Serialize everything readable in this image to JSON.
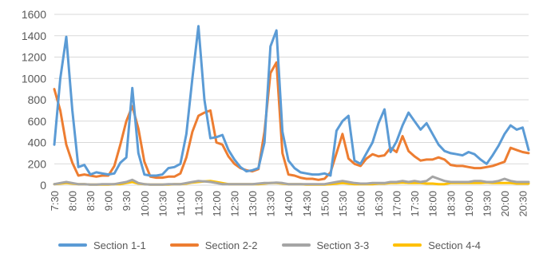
{
  "chart_data": {
    "type": "line",
    "title": "",
    "xlabel": "",
    "ylabel": "",
    "ylim": [
      0,
      1600
    ],
    "yticks": [
      0,
      200,
      400,
      600,
      800,
      1000,
      1200,
      1400,
      1600
    ],
    "grid": "horizontal",
    "legend_position": "bottom",
    "x": [
      "7:30",
      "7:40",
      "7:50",
      "8:00",
      "8:10",
      "8:20",
      "8:30",
      "8:40",
      "8:50",
      "9:00",
      "9:10",
      "9:20",
      "9:30",
      "9:40",
      "9:50",
      "10:00",
      "10:10",
      "10:20",
      "10:30",
      "10:40",
      "10:50",
      "11:00",
      "11:10",
      "11:20",
      "11:30",
      "11:40",
      "11:50",
      "12:00",
      "12:10",
      "12:20",
      "12:30",
      "12:40",
      "12:50",
      "13:00",
      "13:10",
      "13:20",
      "13:30",
      "13:40",
      "13:50",
      "14:00",
      "14:10",
      "14:20",
      "14:30",
      "14:40",
      "14:50",
      "15:00",
      "15:10",
      "15:20",
      "15:30",
      "15:40",
      "15:50",
      "16:00",
      "16:10",
      "16:20",
      "16:30",
      "16:40",
      "16:50",
      "17:00",
      "17:10",
      "17:20",
      "17:30",
      "17:40",
      "17:50",
      "18:00",
      "18:10",
      "18:20",
      "18:30",
      "18:40",
      "18:50",
      "19:00",
      "19:10",
      "19:20",
      "19:30",
      "19:40",
      "19:50",
      "20:00",
      "20:10",
      "20:20",
      "20:30",
      "20:40"
    ],
    "tick_labels": [
      "7:30",
      "8:00",
      "8:30",
      "9:00",
      "9:30",
      "10:00",
      "10:30",
      "11:00",
      "11:30",
      "12:00",
      "12:30",
      "13:00",
      "13:30",
      "14:00",
      "14:30",
      "15:00",
      "15:30",
      "16:00",
      "16:30",
      "17:00",
      "17:30",
      "18:00",
      "18:30",
      "19:00",
      "19:30",
      "20:00",
      "20:30"
    ],
    "series": [
      {
        "name": "Section 1-1",
        "color": "#5B9BD5",
        "values": [
          380,
          1000,
          1390,
          700,
          170,
          190,
          100,
          120,
          110,
          100,
          110,
          210,
          260,
          910,
          300,
          100,
          90,
          90,
          100,
          160,
          170,
          200,
          480,
          1000,
          1490,
          800,
          440,
          450,
          470,
          330,
          240,
          170,
          130,
          140,
          160,
          400,
          1300,
          1450,
          500,
          230,
          160,
          120,
          110,
          100,
          100,
          110,
          90,
          510,
          600,
          650,
          230,
          200,
          300,
          400,
          580,
          710,
          310,
          410,
          560,
          680,
          600,
          520,
          580,
          480,
          380,
          320,
          300,
          290,
          280,
          310,
          290,
          240,
          200,
          280,
          370,
          480,
          560,
          520,
          540,
          330
        ]
      },
      {
        "name": "Section 2-2",
        "color": "#ED7D31",
        "values": [
          900,
          700,
          380,
          210,
          90,
          100,
          90,
          80,
          90,
          90,
          180,
          380,
          600,
          740,
          530,
          220,
          80,
          70,
          70,
          80,
          80,
          110,
          260,
          500,
          650,
          680,
          700,
          400,
          380,
          270,
          200,
          160,
          140,
          130,
          150,
          500,
          1050,
          1150,
          300,
          100,
          90,
          70,
          60,
          60,
          50,
          60,
          120,
          300,
          480,
          250,
          200,
          180,
          250,
          290,
          270,
          280,
          350,
          310,
          460,
          320,
          270,
          230,
          240,
          240,
          260,
          240,
          190,
          180,
          180,
          170,
          160,
          160,
          170,
          180,
          200,
          220,
          350,
          330,
          310,
          300
        ]
      },
      {
        "name": "Section 3-3",
        "color": "#A5A5A5",
        "values": [
          10,
          20,
          30,
          20,
          10,
          10,
          5,
          5,
          10,
          10,
          10,
          20,
          30,
          50,
          20,
          10,
          5,
          5,
          5,
          10,
          10,
          10,
          20,
          30,
          40,
          35,
          30,
          20,
          10,
          10,
          10,
          10,
          10,
          10,
          15,
          20,
          20,
          25,
          20,
          10,
          10,
          10,
          10,
          10,
          10,
          10,
          20,
          30,
          40,
          30,
          20,
          15,
          15,
          20,
          20,
          20,
          30,
          30,
          40,
          30,
          40,
          30,
          40,
          80,
          60,
          40,
          30,
          30,
          30,
          30,
          40,
          40,
          30,
          30,
          40,
          60,
          40,
          30,
          30,
          30
        ]
      },
      {
        "name": "Section 4-4",
        "color": "#FFC000",
        "values": [
          10,
          15,
          20,
          15,
          10,
          10,
          5,
          5,
          5,
          5,
          10,
          10,
          20,
          30,
          15,
          10,
          5,
          5,
          5,
          5,
          10,
          10,
          15,
          25,
          30,
          35,
          40,
          30,
          20,
          10,
          10,
          10,
          10,
          10,
          10,
          15,
          20,
          20,
          15,
          10,
          10,
          10,
          5,
          5,
          5,
          5,
          10,
          15,
          20,
          15,
          10,
          10,
          10,
          10,
          15,
          15,
          20,
          20,
          25,
          20,
          20,
          20,
          15,
          15,
          10,
          10,
          20,
          20,
          20,
          20,
          20,
          20,
          25,
          20,
          20,
          20,
          20,
          15,
          15,
          15
        ]
      }
    ]
  }
}
